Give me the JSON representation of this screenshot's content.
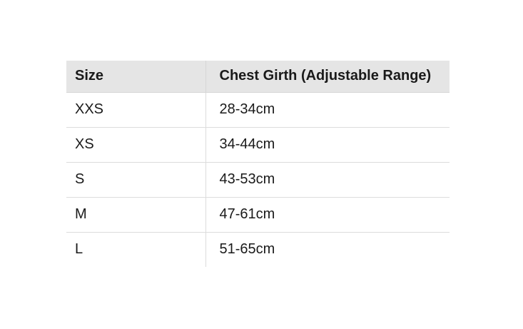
{
  "table": {
    "headers": [
      "Size",
      "Chest Girth (Adjustable Range)"
    ],
    "rows": [
      [
        "XXS",
        "28-34cm"
      ],
      [
        "XS",
        "34-44cm"
      ],
      [
        "S",
        "43-53cm"
      ],
      [
        "M",
        "47-61cm"
      ],
      [
        "L",
        "51-65cm"
      ]
    ]
  },
  "colors": {
    "header_background": "#e5e5e5",
    "border": "#dcdcdc",
    "text": "#1a1a1a"
  }
}
